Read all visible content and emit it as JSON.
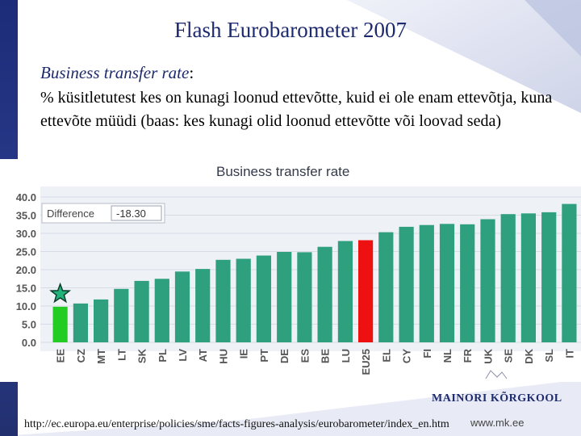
{
  "slide": {
    "title": "Flash Eurobarometer 2007",
    "subtitle": "Business transfer rate",
    "subtitle_colon": ":",
    "description": "% küsitletutest kes on kunagi loonud ettevõtte, kuid ei ole enam ettevõtja, kuna ettevõte müüdi (baas: kes kunagi olid loonud ettevõtte või loovad seda)",
    "url": "http://ec.europa.eu/enterprise/policies/sme/facts-figures-analysis/eurobarometer/index_en.htm",
    "website": "www.mk.ee",
    "logo_text": "MAINORI KÕRGKOOL"
  },
  "chart_data": {
    "type": "bar",
    "title": "Business transfer rate",
    "difference_label": "Difference",
    "difference_value": "-18.30",
    "ylim": [
      0,
      40
    ],
    "yticks": [
      "0.0",
      "5.0",
      "10.0",
      "15.0",
      "20.0",
      "25.0",
      "30.0",
      "35.0",
      "40.0"
    ],
    "categories": [
      "EE",
      "CZ",
      "MT",
      "LT",
      "SK",
      "PL",
      "LV",
      "AT",
      "HU",
      "IE",
      "PT",
      "DE",
      "ES",
      "BE",
      "LU",
      "EU25",
      "EL",
      "CY",
      "FI",
      "NL",
      "FR",
      "UK",
      "SE",
      "DK",
      "SL",
      "IT"
    ],
    "values": [
      9.8,
      10.7,
      11.8,
      14.7,
      16.9,
      17.5,
      19.5,
      20.2,
      22.7,
      23.0,
      23.9,
      24.9,
      24.8,
      26.3,
      27.9,
      28.1,
      30.3,
      31.8,
      32.3,
      32.6,
      32.5,
      33.9,
      35.3,
      35.5,
      35.8,
      38.1
    ],
    "highlight": {
      "EE": "#22cc22",
      "EU25": "#ee1111"
    },
    "bar_color": "#2fa07e",
    "marker": "star",
    "marker_category": "EE",
    "grid": true
  }
}
